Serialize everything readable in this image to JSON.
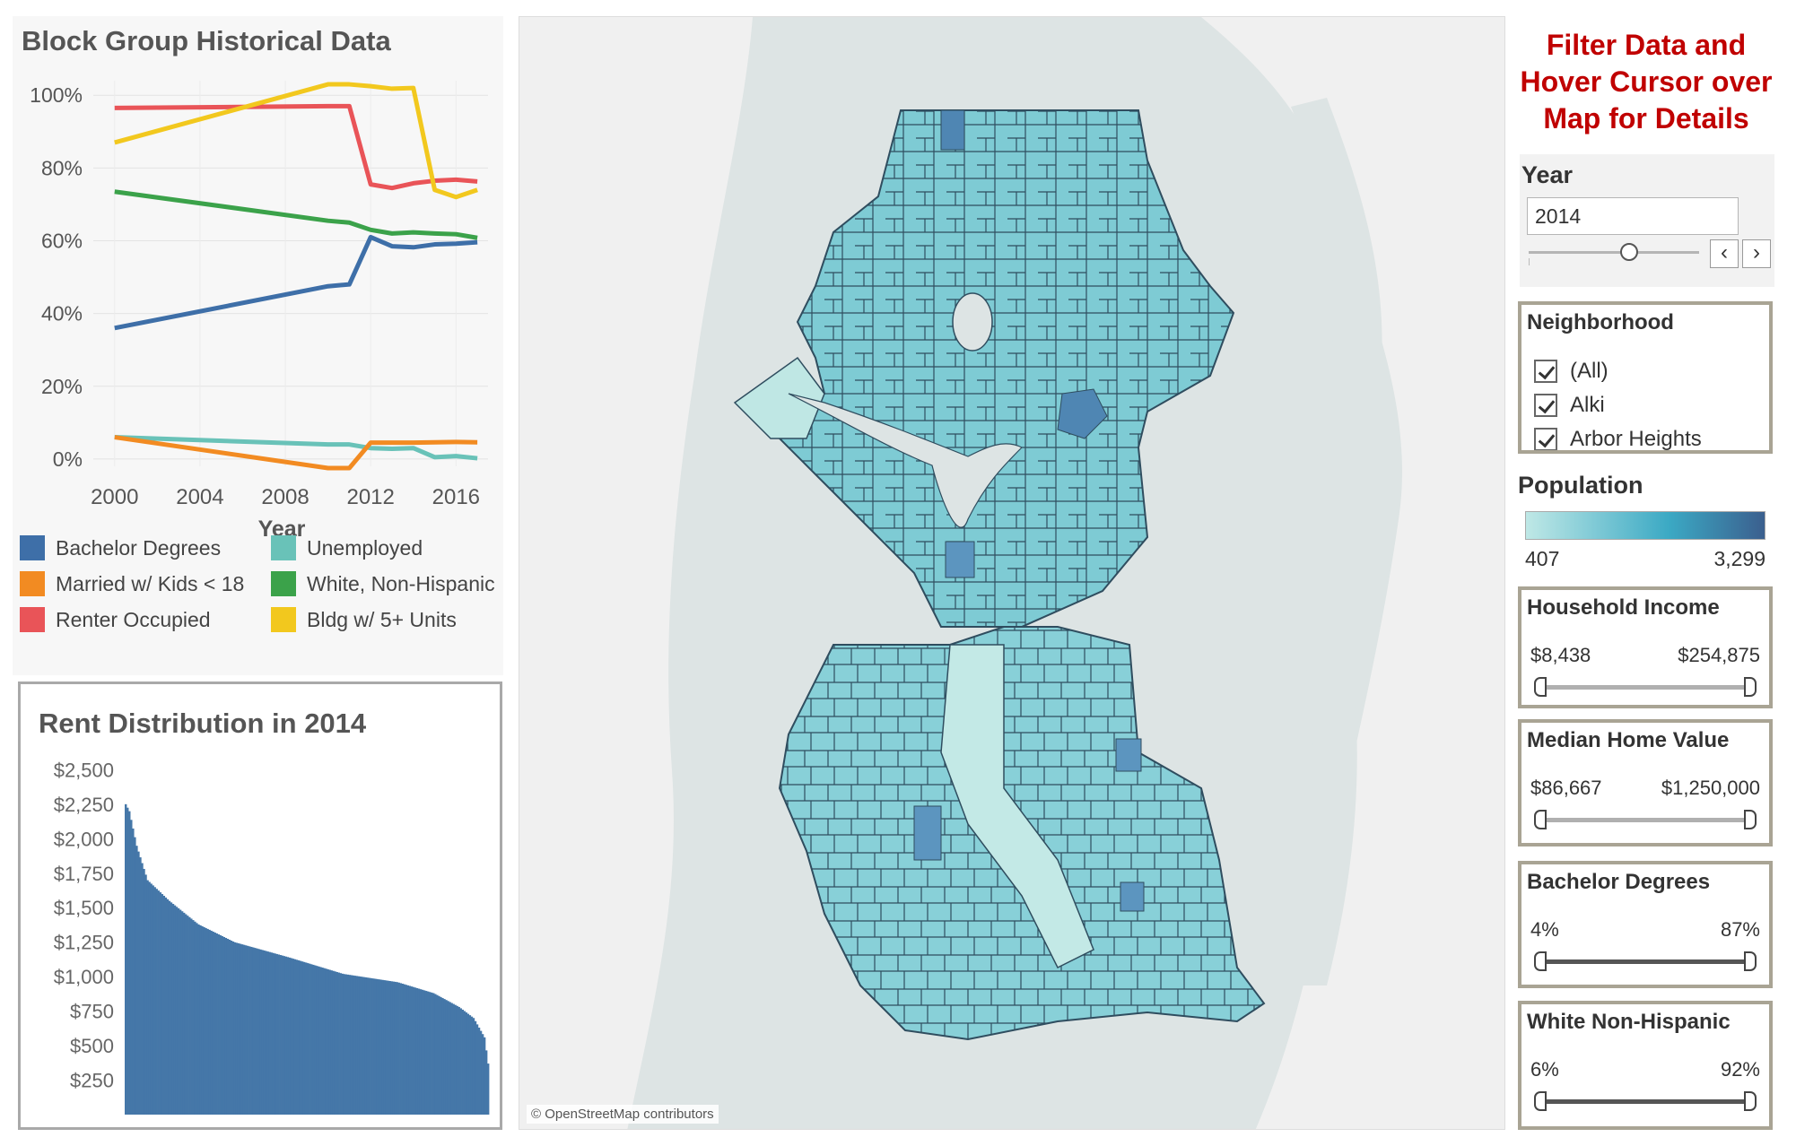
{
  "history": {
    "title": "Block Group Historical Data",
    "xlabel": "Year",
    "legend": [
      {
        "label": "Bachelor Degrees",
        "color": "#3e6fa8"
      },
      {
        "label": "Unemployed",
        "color": "#69c2b8"
      },
      {
        "label": "Married w/ Kids < 18",
        "color": "#f28b22"
      },
      {
        "label": "White, Non-Hispanic",
        "color": "#3ba24a"
      },
      {
        "label": "Renter Occupied",
        "color": "#e95458"
      },
      {
        "label": "Bldg w/ 5+ Units",
        "color": "#f2c81e"
      }
    ]
  },
  "chart_data": [
    {
      "type": "line",
      "title": "Block Group Historical Data",
      "xlabel": "Year",
      "ylabel": "",
      "xlim": [
        1999,
        2017.5
      ],
      "ylim": [
        -2,
        104
      ],
      "xticks": [
        2000,
        2004,
        2008,
        2012,
        2016
      ],
      "xtick_labels": [
        "2000",
        "2004",
        "2008",
        "2012",
        "2016"
      ],
      "yticks": [
        0,
        20,
        40,
        60,
        80,
        100
      ],
      "ytick_labels": [
        "0%",
        "20%",
        "40%",
        "60%",
        "80%",
        "100%"
      ],
      "series": [
        {
          "name": "Bachelor Degrees",
          "color": "#3e6fa8",
          "x": [
            2000,
            2010,
            2011,
            2012,
            2013,
            2014,
            2015,
            2016,
            2017
          ],
          "values": [
            36,
            47.5,
            48,
            61,
            58.5,
            58.2,
            59,
            59.2,
            59.6
          ]
        },
        {
          "name": "Unemployed",
          "color": "#69c2b8",
          "x": [
            2000,
            2010,
            2011,
            2012,
            2013,
            2014,
            2015,
            2016,
            2017
          ],
          "values": [
            6,
            4,
            4,
            3,
            2.8,
            3,
            0.5,
            0.8,
            0.2
          ]
        },
        {
          "name": "Married w/ Kids < 18",
          "color": "#f28b22",
          "x": [
            2000,
            2010,
            2011,
            2012,
            2013,
            2014,
            2015,
            2016,
            2017
          ],
          "values": [
            6,
            -2.5,
            -2.5,
            4.5,
            4.5,
            4.5,
            4.6,
            4.7,
            4.6
          ]
        },
        {
          "name": "White, Non-Hispanic",
          "color": "#3ba24a",
          "x": [
            2000,
            2010,
            2011,
            2012,
            2013,
            2014,
            2015,
            2016,
            2017
          ],
          "values": [
            73.5,
            65.5,
            65,
            63,
            62,
            62.3,
            62,
            61.8,
            60.8
          ]
        },
        {
          "name": "Renter Occupied",
          "color": "#e95458",
          "x": [
            2000,
            2010,
            2011,
            2012,
            2013,
            2014,
            2015,
            2016,
            2017
          ],
          "values": [
            96.5,
            97,
            97,
            75.5,
            74.5,
            75.8,
            76.5,
            76.8,
            76.3
          ]
        },
        {
          "name": "Bldg w/ 5+ Units",
          "color": "#f2c81e",
          "x": [
            2000,
            2010,
            2011,
            2012,
            2013,
            2014,
            2015,
            2016,
            2017
          ],
          "values": [
            87,
            103,
            103,
            102.5,
            101.8,
            102,
            74,
            72,
            74
          ]
        }
      ]
    },
    {
      "type": "bar",
      "title": "Rent Distribution in 2014",
      "ylim": [
        0,
        2600
      ],
      "yticks": [
        250,
        500,
        750,
        1000,
        1250,
        1500,
        1750,
        2000,
        2250,
        2500
      ],
      "ytick_labels": [
        "$250",
        "$500",
        "$750",
        "$1,000",
        "$1,250",
        "$1,500",
        "$1,750",
        "$2,000",
        "$2,250",
        "$2,500"
      ],
      "distribution_knots": [
        [
          0,
          2250
        ],
        [
          0.01,
          2200
        ],
        [
          0.03,
          1950
        ],
        [
          0.06,
          1700
        ],
        [
          0.12,
          1550
        ],
        [
          0.2,
          1380
        ],
        [
          0.3,
          1250
        ],
        [
          0.45,
          1140
        ],
        [
          0.6,
          1020
        ],
        [
          0.75,
          960
        ],
        [
          0.85,
          880
        ],
        [
          0.92,
          780
        ],
        [
          0.96,
          700
        ],
        [
          0.99,
          560
        ],
        [
          1.0,
          370
        ]
      ]
    }
  ],
  "rent": {
    "title": "Rent Distribution in 2014"
  },
  "map": {
    "credit": "© OpenStreetMap contributors"
  },
  "filters": {
    "heading_lines": [
      "Filter Data and",
      "Hover Cursor over",
      "Map for Details"
    ],
    "year": {
      "label": "Year",
      "value": "2014",
      "prev_icon": "‹",
      "next_icon": "›"
    },
    "neighborhood": {
      "title": "Neighborhood",
      "items": [
        "(All)",
        "Alki",
        "Arbor Heights"
      ]
    },
    "population": {
      "title": "Population",
      "min": "407",
      "max": "3,299"
    },
    "household_income": {
      "title": "Household Income",
      "min": "$8,438",
      "max": "$254,875"
    },
    "median_home_value": {
      "title": "Median Home Value",
      "min": "$86,667",
      "max": "$1,250,000"
    },
    "bachelor_degrees": {
      "title": "Bachelor Degrees",
      "min": "4%",
      "max": "87%"
    },
    "white_non_hispanic": {
      "title": "White Non-Hispanic",
      "min": "6%",
      "max": "92%"
    }
  }
}
